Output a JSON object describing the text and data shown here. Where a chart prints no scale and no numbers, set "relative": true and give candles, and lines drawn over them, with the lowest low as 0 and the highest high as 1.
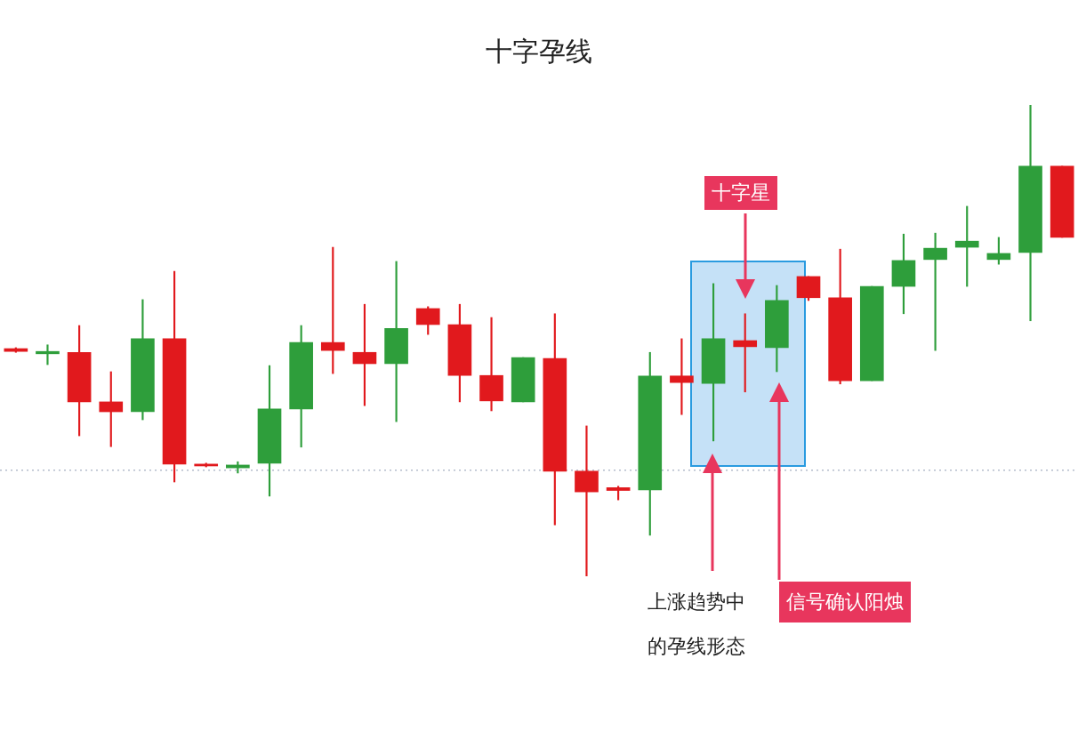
{
  "chart_data": {
    "type": "candlestick",
    "title": "十字孕线",
    "relative": true,
    "categories": [
      null,
      null,
      null,
      null,
      null,
      null,
      null,
      null,
      null,
      null,
      null,
      null,
      null,
      null,
      null,
      null,
      null,
      null,
      null,
      null,
      null,
      null,
      null,
      null,
      null,
      null,
      null,
      null,
      null,
      null,
      null,
      null,
      null,
      null
    ],
    "ohlc": [
      [
        0.483,
        0.485,
        0.475,
        0.477
      ],
      [
        0.472,
        0.491,
        0.449,
        0.477
      ],
      [
        0.475,
        0.532,
        0.298,
        0.37
      ],
      [
        0.37,
        0.434,
        0.275,
        0.349
      ],
      [
        0.349,
        0.587,
        0.332,
        0.504
      ],
      [
        0.504,
        0.647,
        0.2,
        0.238
      ],
      [
        0.238,
        0.24,
        0.232,
        0.234
      ],
      [
        0.23,
        0.243,
        0.219,
        0.236
      ],
      [
        0.24,
        0.447,
        0.17,
        0.355
      ],
      [
        0.355,
        0.532,
        0.274,
        0.496
      ],
      [
        0.496,
        0.698,
        0.43,
        0.479
      ],
      [
        0.475,
        0.577,
        0.362,
        0.451
      ],
      [
        0.451,
        0.668,
        0.328,
        0.526
      ],
      [
        0.568,
        0.572,
        0.513,
        0.534
      ],
      [
        0.534,
        0.577,
        0.37,
        0.426
      ],
      [
        0.426,
        0.549,
        0.351,
        0.372
      ],
      [
        0.37,
        0.464,
        0.37,
        0.464
      ],
      [
        0.462,
        0.557,
        0.109,
        0.223
      ],
      [
        0.223,
        0.319,
        0,
        0.179
      ],
      [
        0.188,
        0.191,
        0.162,
        0.182
      ],
      [
        0.183,
        0.475,
        0.087,
        0.425
      ],
      [
        0.425,
        0.504,
        0.343,
        0.411
      ],
      [
        0.409,
        0.621,
        0.287,
        0.504
      ],
      [
        0.5,
        0.557,
        0.391,
        0.487
      ],
      [
        0.485,
        0.617,
        0.434,
        0.585
      ],
      [
        0.636,
        0.636,
        0.585,
        0.591
      ],
      [
        0.591,
        0.694,
        0.408,
        0.415
      ],
      [
        0.415,
        0.615,
        0.415,
        0.615
      ],
      [
        0.615,
        0.726,
        0.557,
        0.67
      ],
      [
        0.672,
        0.728,
        0.479,
        0.696
      ],
      [
        0.698,
        0.785,
        0.615,
        0.711
      ],
      [
        0.672,
        0.719,
        0.662,
        0.685
      ],
      [
        0.687,
        1,
        0.542,
        0.87
      ],
      [
        0.87,
        0.87,
        0.719,
        0.719
      ]
    ],
    "colors": [
      "#e1191d",
      "#2e9e3b",
      "#e1191d",
      "#e1191d",
      "#2e9e3b",
      "#e1191d",
      "#e1191d",
      "#2e9e3b",
      "#2e9e3b",
      "#2e9e3b",
      "#e1191d",
      "#e1191d",
      "#2e9e3b",
      "#e1191d",
      "#e1191d",
      "#e1191d",
      "#2e9e3b",
      "#e1191d",
      "#e1191d",
      "#e1191d",
      "#2e9e3b",
      "#e1191d",
      "#2e9e3b",
      "#e1191d",
      "#2e9e3b",
      "#e1191d",
      "#e1191d",
      "#2e9e3b",
      "#2e9e3b",
      "#2e9e3b",
      "#2e9e3b",
      "#2e9e3b",
      "#2e9e3b",
      "#e1191d"
    ],
    "ref_lines": [
      {
        "axis": "y",
        "value": 0.225,
        "line_style": "dotted",
        "color": "#b4bccb"
      }
    ],
    "annotations": [
      "十字星",
      "上涨趋势中的孕线形态",
      "信号确认阳烛"
    ]
  }
}
